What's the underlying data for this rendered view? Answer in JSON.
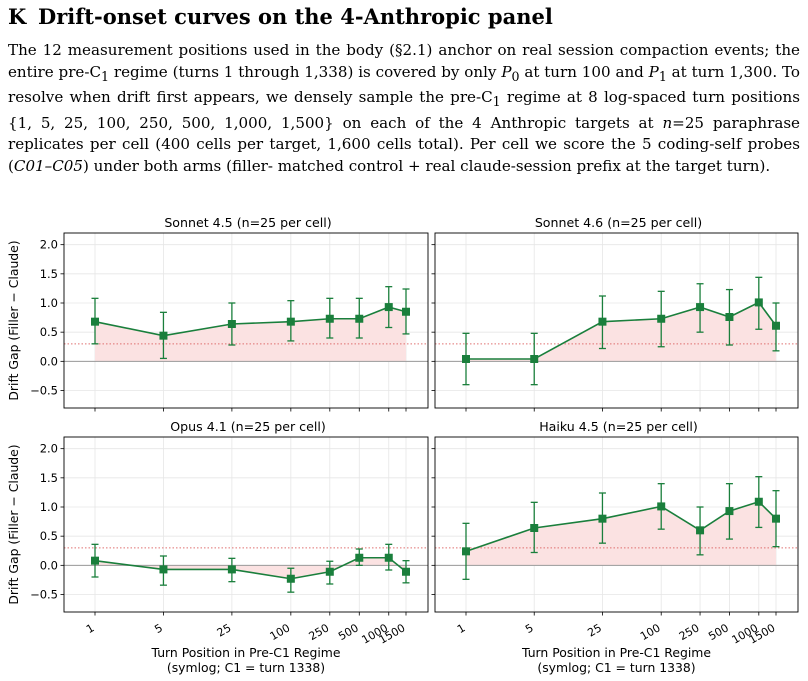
{
  "section": {
    "number": "K",
    "title": "Drift-onset curves on the 4-Anthropic panel"
  },
  "paragraph": {
    "s1": "The 12 measurement positions used in the body (§2.1) anchor on real session compaction events; the entire pre-C",
    "sub1": "1",
    "s2": " regime (turns 1 through 1,338) is covered by only ",
    "p0": "P",
    "sub_p0": "0",
    "s3": " at turn 100 and ",
    "p1": "P",
    "sub_p1": "1",
    "s4": " at turn 1,300. To resolve when drift first appears, we densely sample the pre-C",
    "sub2": "1",
    "s5": " regime at 8 log-spaced turn positions {1, 5, 25, 100, 250, 500, 1,000, 1,500} on each of the 4 Anthropic targets at ",
    "n_var": "n",
    "s6": "=25 paraphrase replicates per cell (400 cells per target, 1,600 cells total). Per cell we score the 5 coding-self probes (",
    "c_range": "C01–C05",
    "s7": ") under both arms (filler- matched control + real claude-session prefix at the target turn)."
  },
  "chart_data": {
    "type": "line",
    "x_ticks": [
      "1",
      "5",
      "25",
      "100",
      "250",
      "500",
      "1000",
      "1500"
    ],
    "x_positions": [
      1,
      5,
      25,
      100,
      250,
      500,
      1000,
      1500
    ],
    "x_scale": "symlog",
    "ylabel": "Drift Gap (Filler − Claude)",
    "xlabel_line1": "Turn Position in Pre-C1 Regime",
    "xlabel_line2": "(symlog; C1 = turn 1338)",
    "ylim": [
      -0.8,
      2.2
    ],
    "y_ticks": [
      "2.0",
      "1.5",
      "1.0",
      "0.5",
      "0.0",
      "−0.5"
    ],
    "y_tick_values": [
      2.0,
      1.5,
      1.0,
      0.5,
      0.0,
      -0.5
    ],
    "reference_line": 0.3,
    "grid": true,
    "line_color": "#1a7f3c",
    "fill_color": "#fbe2e2",
    "panels": [
      {
        "title": "Sonnet 4.5  (n=25 per cell)",
        "values": [
          0.68,
          0.44,
          0.64,
          0.68,
          0.73,
          0.73,
          0.93,
          0.85
        ],
        "err_low": [
          0.3,
          0.05,
          0.28,
          0.35,
          0.4,
          0.4,
          0.58,
          0.47
        ],
        "err_high": [
          1.08,
          0.84,
          1.0,
          1.04,
          1.08,
          1.08,
          1.28,
          1.24
        ]
      },
      {
        "title": "Sonnet 4.6  (n=25 per cell)",
        "values": [
          0.04,
          0.04,
          0.68,
          0.73,
          0.93,
          0.76,
          1.01,
          0.61
        ],
        "err_low": [
          -0.4,
          -0.4,
          0.22,
          0.25,
          0.5,
          0.28,
          0.55,
          0.18
        ],
        "err_high": [
          0.48,
          0.48,
          1.12,
          1.2,
          1.33,
          1.23,
          1.44,
          1.0
        ]
      },
      {
        "title": "Opus 4.1  (n=25 per cell)",
        "values": [
          0.08,
          -0.07,
          -0.07,
          -0.23,
          -0.11,
          0.13,
          0.13,
          -0.11
        ],
        "err_low": [
          -0.2,
          -0.34,
          -0.28,
          -0.46,
          -0.32,
          0.0,
          -0.08,
          -0.3
        ],
        "err_high": [
          0.36,
          0.16,
          0.12,
          -0.05,
          0.07,
          0.28,
          0.36,
          0.08
        ]
      },
      {
        "title": "Haiku 4.5  (n=25 per cell)",
        "values": [
          0.24,
          0.64,
          0.8,
          1.01,
          0.6,
          0.93,
          1.09,
          0.8
        ],
        "err_low": [
          -0.24,
          0.22,
          0.38,
          0.62,
          0.18,
          0.45,
          0.65,
          0.32
        ],
        "err_high": [
          0.72,
          1.08,
          1.24,
          1.4,
          1.0,
          1.4,
          1.52,
          1.28
        ]
      }
    ]
  }
}
